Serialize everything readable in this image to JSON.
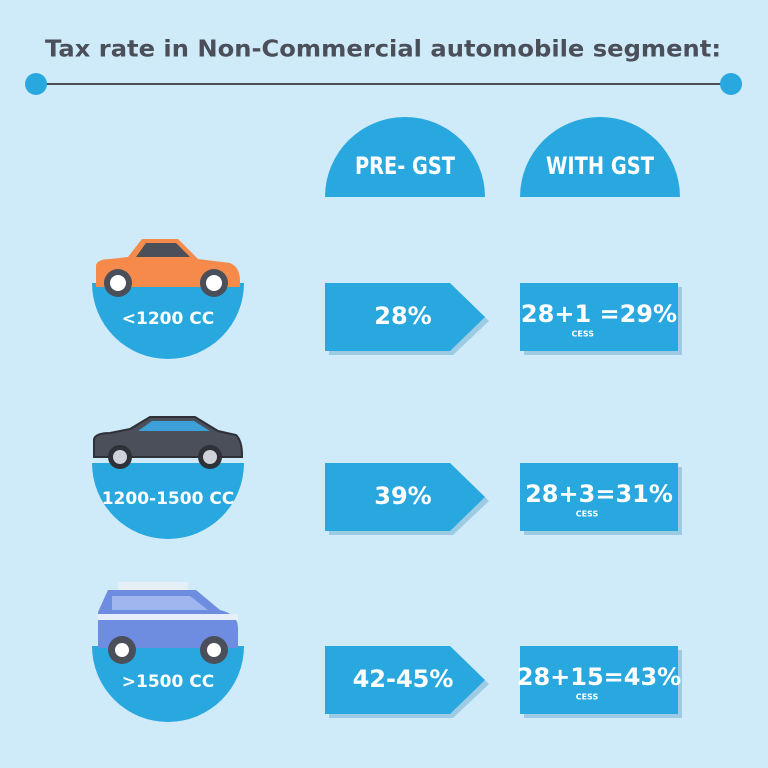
{
  "title": "Tax rate in Non-Commercial automobile segment:",
  "columns": {
    "pre_gst": "PRE- GST",
    "with_gst": "WITH GST"
  },
  "rows": [
    {
      "label": "<1200 CC",
      "pre_gst": "28%",
      "with_gst": {
        "prefix": "28+",
        "cess": "1",
        "suffix": " =29%",
        "cess_label": "CESS"
      }
    },
    {
      "label": "1200-1500 CC",
      "pre_gst": "39%",
      "with_gst": {
        "prefix": "28+",
        "cess": "3",
        "suffix": "=31%",
        "cess_label": "CESS"
      }
    },
    {
      "label": ">1500 CC",
      "pre_gst": "42-45%",
      "with_gst": {
        "prefix": "28+",
        "cess": "15",
        "suffix": "=43%",
        "cess_label": "CESS"
      }
    }
  ]
}
